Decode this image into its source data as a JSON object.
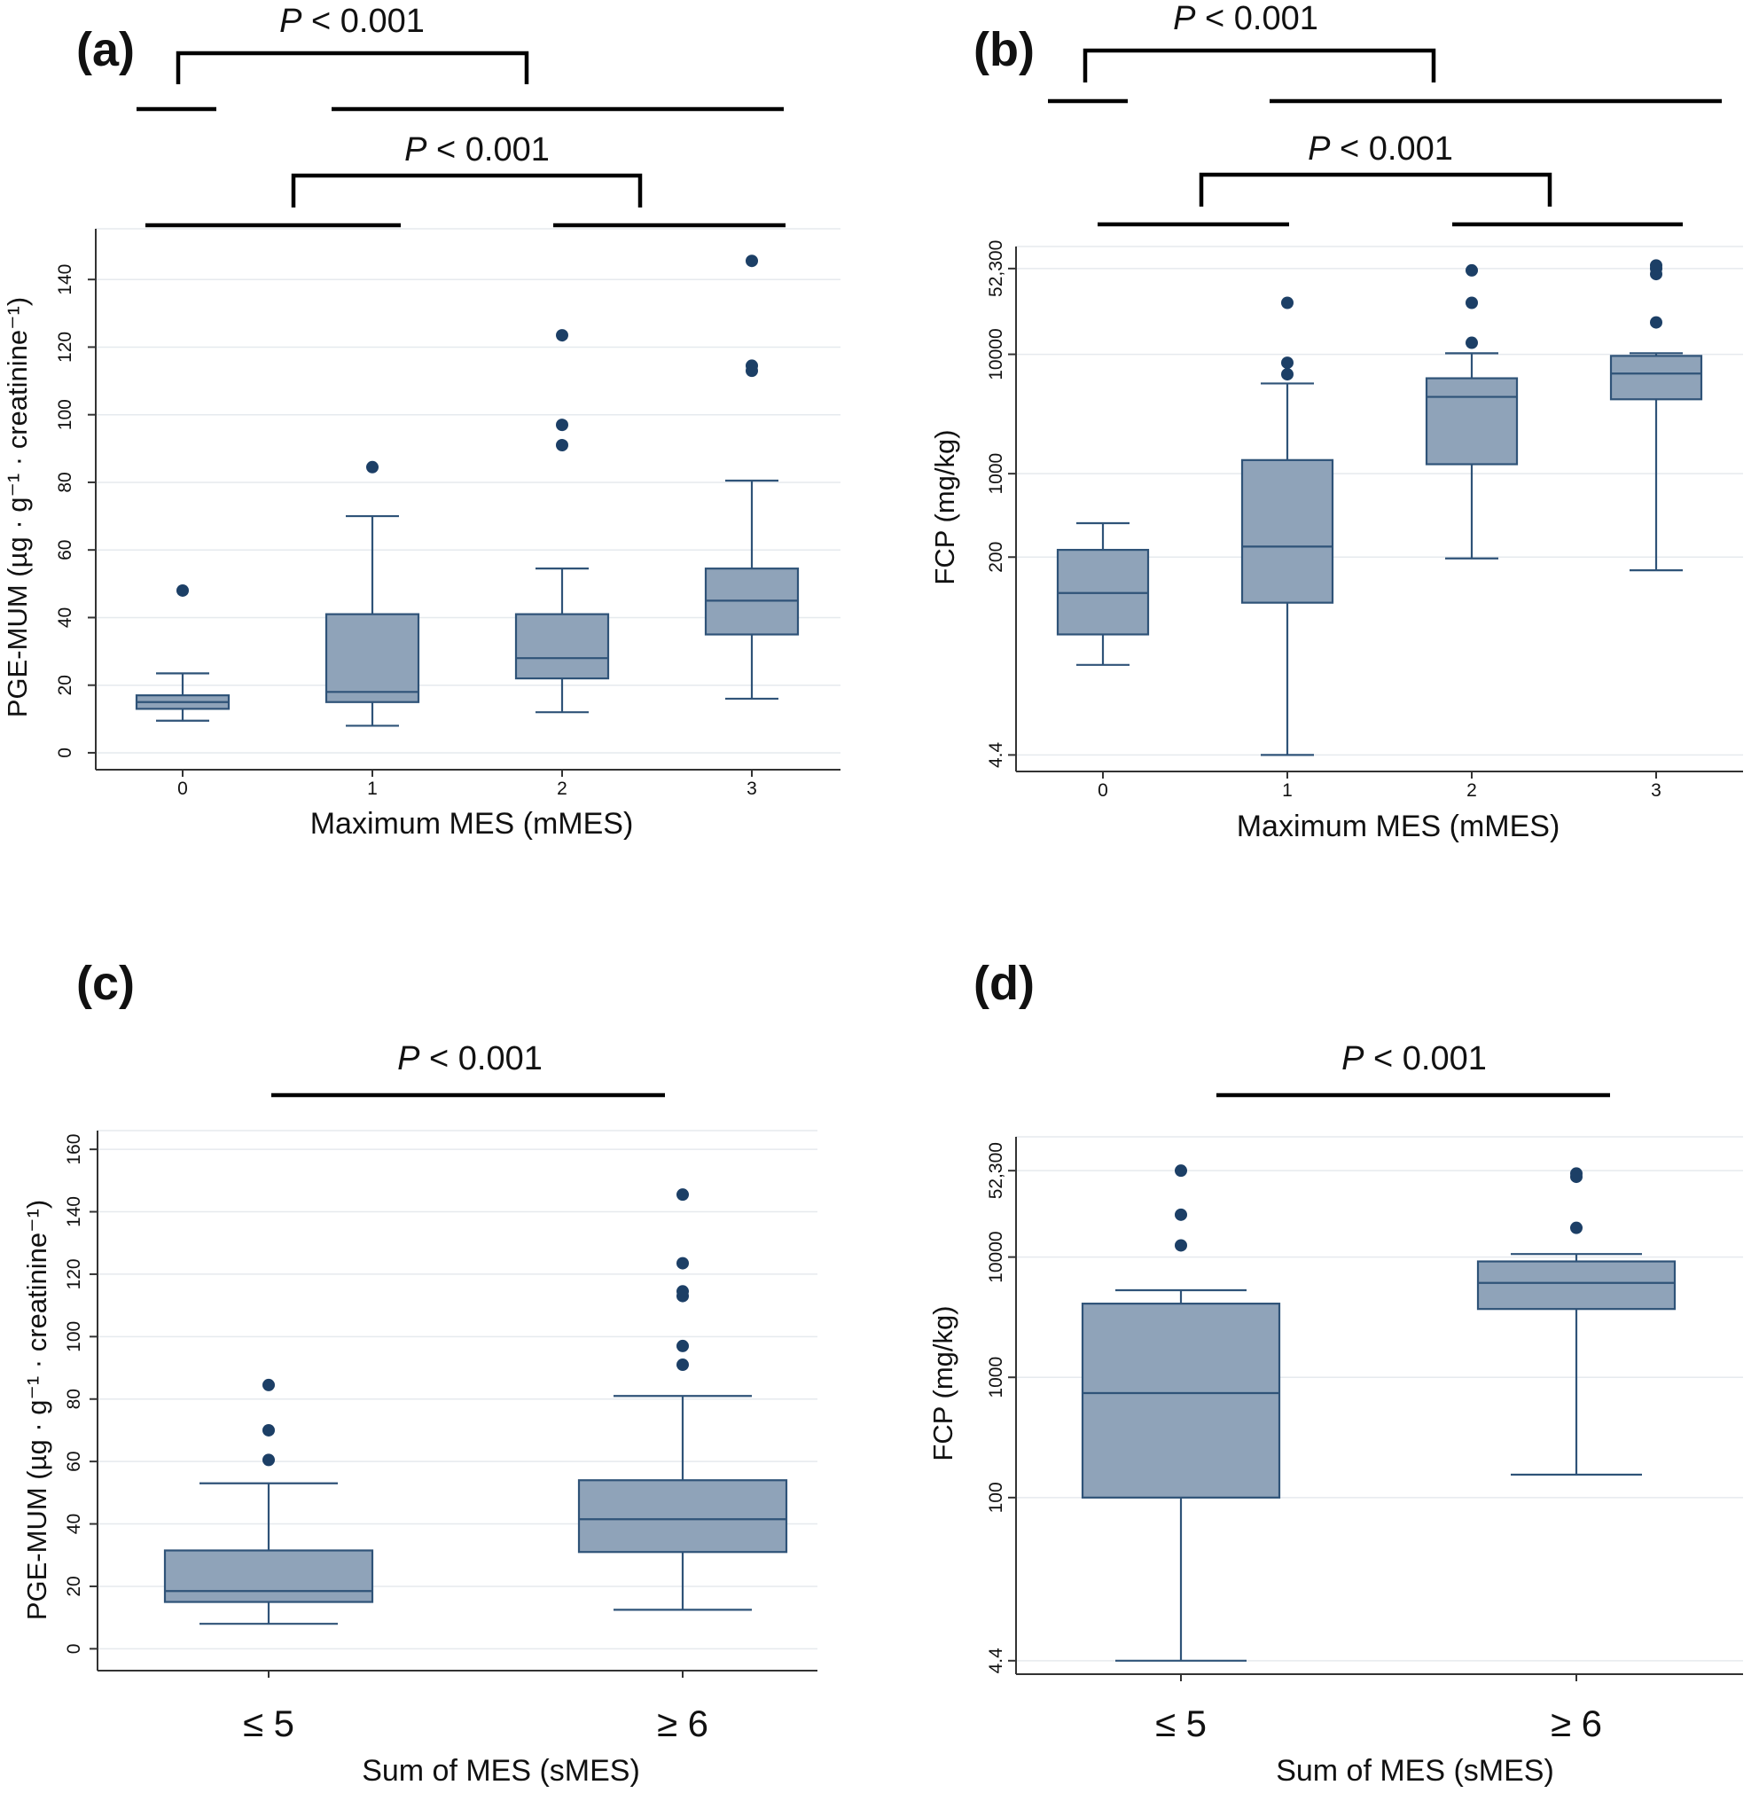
{
  "colors": {
    "box_fill": "#8fa3b9",
    "box_stroke": "#2f5378",
    "outlier": "#1c3f66",
    "grid": "#e6eaee",
    "axis": "#333333",
    "bracket": "#000000"
  },
  "chart_data": [
    {
      "id": "a",
      "panel_label": "(a)",
      "type": "box",
      "scale": "linear",
      "ylabel": "PGE-MUM (µg · g⁻¹ · creatinine⁻¹)",
      "xlabel": "Maximum MES (mMES)",
      "ylim": [
        -5,
        155
      ],
      "yticks": [
        0,
        20,
        40,
        60,
        80,
        100,
        120,
        140
      ],
      "ytick_labels": [
        "0",
        "20",
        "40",
        "60",
        "80",
        "100",
        "120",
        "140"
      ],
      "categories": [
        "0",
        "1",
        "2",
        "3"
      ],
      "boxes": [
        {
          "min": 9.5,
          "q1": 13,
          "median": 15,
          "q3": 17,
          "max": 23.5,
          "outliers": [
            48
          ]
        },
        {
          "min": 8,
          "q1": 15,
          "median": 18,
          "q3": 41,
          "max": 70,
          "outliers": [
            84.5
          ]
        },
        {
          "min": 12,
          "q1": 22,
          "median": 28,
          "q3": 41,
          "max": 54.5,
          "outliers": [
            91,
            97,
            123.5
          ]
        },
        {
          "min": 16,
          "q1": 35,
          "median": 45,
          "q3": 54.5,
          "max": 80.5,
          "outliers": [
            113,
            114.5,
            145.5
          ]
        }
      ],
      "comparisons": [
        {
          "label_prefix": "P",
          "label_suffix": " < 0.001",
          "left_group": [
            0
          ],
          "right_group": [
            1,
            2,
            3
          ]
        },
        {
          "label_prefix": "P",
          "label_suffix": " < 0.001",
          "left_group": [
            0,
            1
          ],
          "right_group": [
            2,
            3
          ]
        }
      ]
    },
    {
      "id": "b",
      "panel_label": "(b)",
      "type": "box",
      "scale": "log",
      "ylabel": "FCP (mg/kg)",
      "xlabel": "Maximum MES (mMES)",
      "ylim": [
        3.2,
        80000
      ],
      "yticks": [
        4.4,
        200,
        1000,
        10000,
        52300
      ],
      "ytick_labels": [
        "4.4",
        "200",
        "1000",
        "10000",
        "52,300"
      ],
      "categories": [
        "0",
        "1",
        "2",
        "3"
      ],
      "boxes": [
        {
          "min": 25,
          "q1": 45,
          "median": 100,
          "q3": 230,
          "max": 385,
          "outliers": []
        },
        {
          "min": 4.4,
          "q1": 83,
          "median": 245,
          "q3": 1300,
          "max": 5700,
          "outliers": [
            6800,
            8500,
            27000
          ]
        },
        {
          "min": 195,
          "q1": 1200,
          "median": 4400,
          "q3": 6300,
          "max": 10200,
          "outliers": [
            12500,
            27000,
            50500
          ]
        },
        {
          "min": 155,
          "q1": 4200,
          "median": 6900,
          "q3": 9700,
          "max": 10200,
          "outliers": [
            18500,
            47000,
            52300,
            55500
          ]
        }
      ],
      "comparisons": [
        {
          "label_prefix": "P",
          "label_suffix": " < 0.001",
          "left_group": [
            0
          ],
          "right_group": [
            1,
            2,
            3
          ]
        },
        {
          "label_prefix": "P",
          "label_suffix": " < 0.001",
          "left_group": [
            0,
            1
          ],
          "right_group": [
            2,
            3
          ]
        }
      ]
    },
    {
      "id": "c",
      "panel_label": "(c)",
      "type": "box",
      "scale": "linear",
      "ylabel": "PGE-MUM (µg · g⁻¹ · creatinine⁻¹)",
      "xlabel": "Sum of MES (sMES)",
      "ylim": [
        -7,
        166
      ],
      "yticks": [
        0,
        20,
        40,
        60,
        80,
        100,
        120,
        140,
        160
      ],
      "ytick_labels": [
        "0",
        "20",
        "40",
        "60",
        "80",
        "100",
        "120",
        "140",
        "160"
      ],
      "categories": [
        "≤ 5",
        "≥ 6"
      ],
      "boxes": [
        {
          "min": 8,
          "q1": 15,
          "median": 18.5,
          "q3": 31.5,
          "max": 53,
          "outliers": [
            60.5,
            70,
            84.5
          ]
        },
        {
          "min": 12.5,
          "q1": 31,
          "median": 41.5,
          "q3": 54,
          "max": 81,
          "outliers": [
            91,
            97,
            113,
            114.5,
            123.5,
            145.5
          ]
        }
      ],
      "comparisons": [
        {
          "label_prefix": "P",
          "label_suffix": " < 0.001",
          "left_group": [
            0
          ],
          "right_group": [
            1
          ]
        }
      ]
    },
    {
      "id": "d",
      "panel_label": "(d)",
      "type": "box",
      "scale": "log",
      "ylabel": "FCP (mg/kg)",
      "xlabel": "Sum of MES (sMES)",
      "ylim": [
        3.4,
        100000
      ],
      "yticks": [
        4.4,
        100,
        1000,
        10000,
        52300
      ],
      "ytick_labels": [
        "4.4",
        "100",
        "1000",
        "10000",
        "52,300"
      ],
      "categories": [
        "≤ 5",
        "≥ 6"
      ],
      "boxes": [
        {
          "min": 4.4,
          "q1": 100,
          "median": 740,
          "q3": 4100,
          "max": 5300,
          "outliers": [
            12500,
            22500,
            52300
          ]
        },
        {
          "min": 155,
          "q1": 3700,
          "median": 6100,
          "q3": 9200,
          "max": 10600,
          "outliers": [
            17500,
            46500,
            49500
          ]
        }
      ],
      "comparisons": [
        {
          "label_prefix": "P",
          "label_suffix": " < 0.001",
          "left_group": [
            0
          ],
          "right_group": [
            1
          ]
        }
      ]
    }
  ]
}
